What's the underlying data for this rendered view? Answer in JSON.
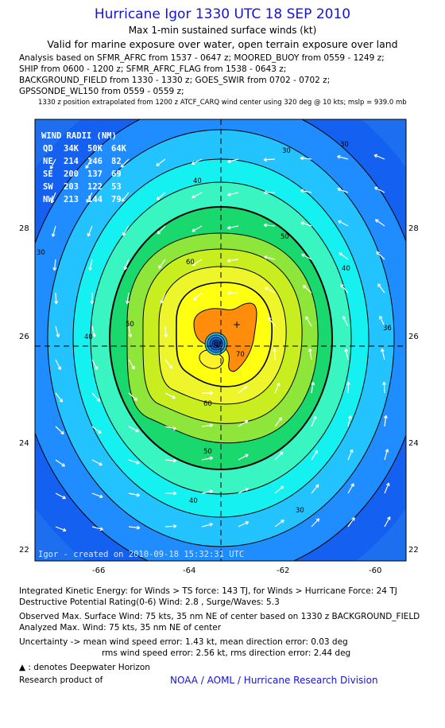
{
  "header": {
    "title": "Hurricane Igor 1330 UTC 18 SEP 2010",
    "subtitle": "Max 1-min sustained surface winds (kt)",
    "valid": "Valid for marine exposure over water, open terrain exposure over land"
  },
  "analysis_lines": [
    "Analysis based on SFMR_AFRC from 1537 - 0647 z; MOORED_BUOY from 0559 - 1249 z;",
    "SHIP from 0600 - 1200 z; SFMR_AFRC_FLAG from 1538 - 0643 z;",
    "BACKGROUND_FIELD from 1330 - 1330 z; GOES_SWIR from 0702 - 0702 z;",
    "GPSSONDE_WL150 from 0559 - 0559 z;"
  ],
  "position_note": "1330 z position extrapolated from 1200 z ATCF_CARQ wind center using 320 deg @ 10 kts; mslp = 939.0 mb",
  "map": {
    "lon_ticks": [
      "-66",
      "-64",
      "-62",
      "-60"
    ],
    "lat_ticks": [
      "28",
      "26",
      "24",
      "22"
    ],
    "contour_labels": [
      "30",
      "40",
      "50",
      "60",
      "70",
      "30",
      "40",
      "50",
      "60",
      "36",
      "40",
      "50",
      "30",
      "40",
      "30"
    ],
    "wind_radii": {
      "header": "WIND RADII (NM)",
      "rows": [
        {
          "q": "QD",
          "a": "34K",
          "b": "50K",
          "c": "64K"
        },
        {
          "q": "NE",
          "a": "214",
          "b": "146",
          "c": "82"
        },
        {
          "q": "SE",
          "a": "200",
          "b": "137",
          "c": "69"
        },
        {
          "q": "SW",
          "a": "203",
          "b": "122",
          "c": "53"
        },
        {
          "q": "NW",
          "a": "213",
          "b": "144",
          "c": "79"
        }
      ]
    },
    "footer": "Igor - created on 2010-09-18 15:32:31 UTC",
    "colors": {
      "ocean": "#1e6ff0",
      "bands": [
        "#1460f0",
        "#1f8cff",
        "#22c3ff",
        "#15f0f0",
        "#38f5c2",
        "#2fe06a",
        "#9ee832",
        "#d9f21f",
        "#ffff10",
        "#ff8c0a"
      ]
    }
  },
  "bottom": {
    "ike": "Integrated Kinetic Energy:  for Winds > TS force: 143 TJ,  for Winds > Hurricane Force: 24 TJ",
    "dpr": "Destructive Potential Rating(0-6)   Wind: 2.8 , Surge/Waves: 5.3",
    "observed": "Observed Max. Surface Wind: 75 kts, 35 nm NE of center based on 1330 z BACKGROUND_FIELD",
    "analyzed": "Analyzed Max. Wind: 75 kts, 35 nm NE of center",
    "uncert1": "Uncertainty -> mean wind speed error: 1.43 kt,   mean direction error: 0.03 deg",
    "uncert2": "rms wind speed error: 2.56 kt,   rms direction error: 2.44 deg",
    "deepwater": ": denotes Deepwater Horizon",
    "research": "Research product of",
    "org": "NOAA / AOML / Hurricane Research Division"
  }
}
